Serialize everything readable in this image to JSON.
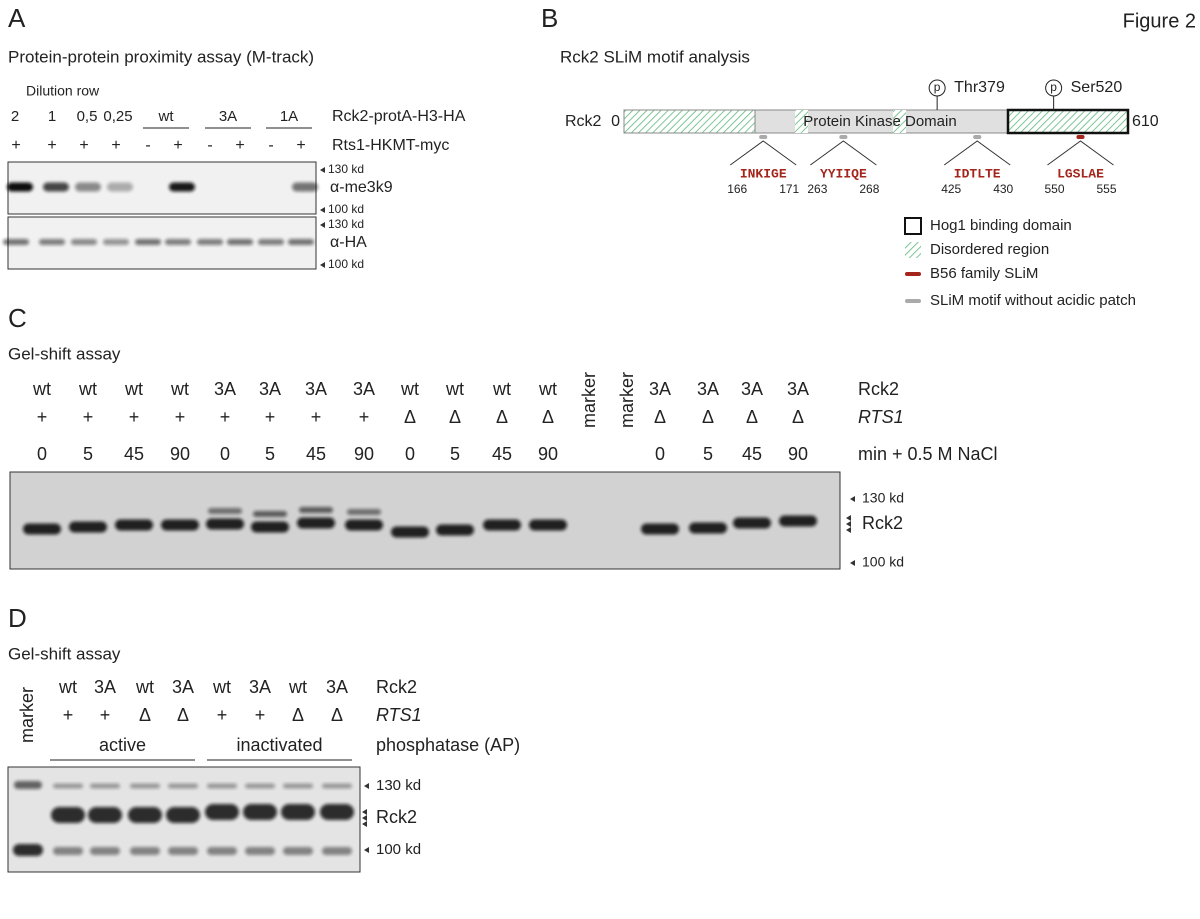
{
  "figure_label": "Figure 2",
  "panel_a": {
    "letter": "A",
    "title": "Protein-protein proximity assay (M-track)",
    "dilution_label": "Dilution row",
    "lane_groups": [
      "2",
      "1",
      "0,5",
      "0,25",
      "wt",
      "3A",
      "1A"
    ],
    "construct_label": "Rck2-protA-H3-HA",
    "rts1_signs": [
      "+",
      "+",
      "+",
      "+",
      "-",
      "+",
      "-",
      "+",
      "-",
      "+"
    ],
    "rts1_label": "Rts1-HKMT-myc",
    "blots": [
      {
        "antibody": "α-me3k9",
        "upper_marker": "130 kd",
        "lower_marker": "100 kd"
      },
      {
        "antibody": "α-HA",
        "upper_marker": "130 kd",
        "lower_marker": "100 kd"
      }
    ]
  },
  "panel_b": {
    "letter": "B",
    "title": "Rck2 SLiM motif analysis",
    "protein": "Rck2",
    "start": 0,
    "end": 610,
    "domain": "Protein Kinase Domain",
    "phospho_symbol": "p",
    "sites": [
      "Thr379",
      "Ser520"
    ],
    "motifs": [
      {
        "sequence": "INKIGE",
        "start": 166,
        "end": 171,
        "color": "#aaaaaa"
      },
      {
        "sequence": "YYIIQE",
        "start": 263,
        "end": 268,
        "color": "#aaaaaa"
      },
      {
        "sequence": "IDTLTE",
        "start": 425,
        "end": 430,
        "color": "#aaaaaa"
      },
      {
        "sequence": "LGSLAE",
        "start": 550,
        "end": 555,
        "color": "#a3251b"
      }
    ],
    "legend": [
      "Hog1 binding domain",
      "Disordered region",
      "B56 family SLiM",
      "SLiM motif without acidic patch"
    ]
  },
  "panel_c": {
    "letter": "C",
    "title": "Gel-shift assay",
    "lanes": [
      {
        "rck2": "wt",
        "rts1": "+",
        "time": "0"
      },
      {
        "rck2": "wt",
        "rts1": "+",
        "time": "5"
      },
      {
        "rck2": "wt",
        "rts1": "+",
        "time": "45"
      },
      {
        "rck2": "wt",
        "rts1": "+",
        "time": "90"
      },
      {
        "rck2": "3A",
        "rts1": "+",
        "time": "0"
      },
      {
        "rck2": "3A",
        "rts1": "+",
        "time": "5"
      },
      {
        "rck2": "3A",
        "rts1": "+",
        "time": "45"
      },
      {
        "rck2": "3A",
        "rts1": "+",
        "time": "90"
      },
      {
        "rck2": "wt",
        "rts1": "Δ",
        "time": "0"
      },
      {
        "rck2": "wt",
        "rts1": "Δ",
        "time": "5"
      },
      {
        "rck2": "wt",
        "rts1": "Δ",
        "time": "45"
      },
      {
        "rck2": "wt",
        "rts1": "Δ",
        "time": "90"
      },
      {
        "marker": "marker"
      },
      {
        "marker": "marker"
      },
      {
        "rck2": "3A",
        "rts1": "Δ",
        "time": "0"
      },
      {
        "rck2": "3A",
        "rts1": "Δ",
        "time": "5"
      },
      {
        "rck2": "3A",
        "rts1": "Δ",
        "time": "45"
      },
      {
        "rck2": "3A",
        "rts1": "Δ",
        "time": "90"
      }
    ],
    "row_labels": [
      "Rck2",
      "RTS1",
      "min + 0.5 M NaCl"
    ],
    "size_markers": [
      "130 kd",
      "Rck2",
      "100 kd"
    ]
  },
  "panel_d": {
    "letter": "D",
    "title": "Gel-shift assay",
    "marker": "marker",
    "lanes": [
      {
        "rck2": "wt",
        "rts1": "+"
      },
      {
        "rck2": "3A",
        "rts1": "+"
      },
      {
        "rck2": "wt",
        "rts1": "Δ"
      },
      {
        "rck2": "3A",
        "rts1": "Δ"
      },
      {
        "rck2": "wt",
        "rts1": "+"
      },
      {
        "rck2": "3A",
        "rts1": "+"
      },
      {
        "rck2": "wt",
        "rts1": "Δ"
      },
      {
        "rck2": "3A",
        "rts1": "Δ"
      }
    ],
    "groups": [
      "active",
      "inactivated"
    ],
    "row_labels": [
      "Rck2",
      "RTS1",
      "phosphatase (AP)"
    ],
    "size_markers": [
      "130 kd",
      "Rck2",
      "100 kd"
    ]
  }
}
